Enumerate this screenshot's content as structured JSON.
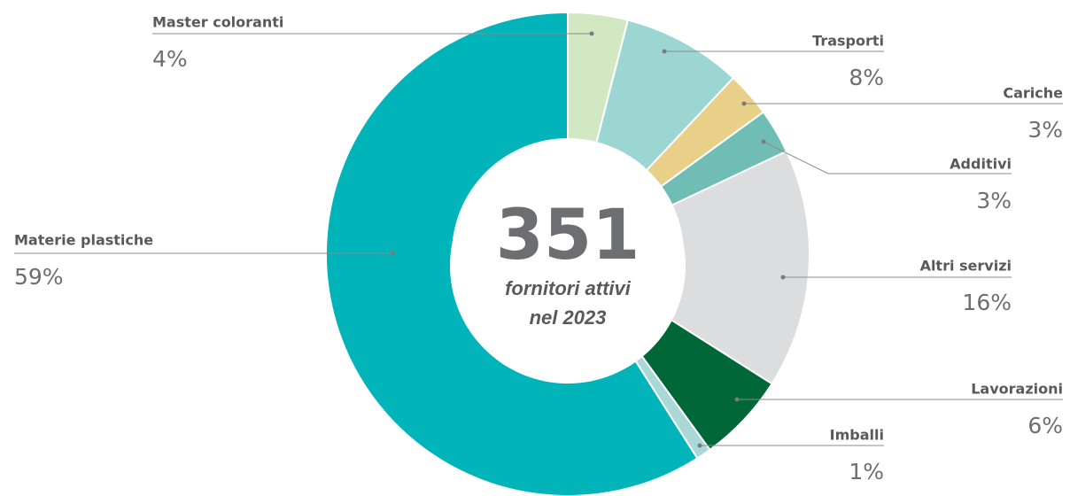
{
  "chart_data": {
    "type": "donut",
    "center_value": "351",
    "center_text": [
      "fornitori attivi",
      "nel 2023"
    ],
    "categories": [
      "Master coloranti",
      "Trasporti",
      "Cariche",
      "Additivi",
      "Altri servizi",
      "Lavorazioni",
      "Imballi",
      "Materie plastiche"
    ],
    "values": [
      4,
      8,
      3,
      3,
      16,
      6,
      1,
      59
    ],
    "value_labels": [
      "4%",
      "8%",
      "3%",
      "3%",
      "16%",
      "6%",
      "1%",
      "59%"
    ],
    "colors": [
      "#d2e8c3",
      "#9bd6d3",
      "#e9d089",
      "#6fbdb5",
      "#dcdddf",
      "#006838",
      "#a9d8d6",
      "#00b4b9"
    ]
  }
}
